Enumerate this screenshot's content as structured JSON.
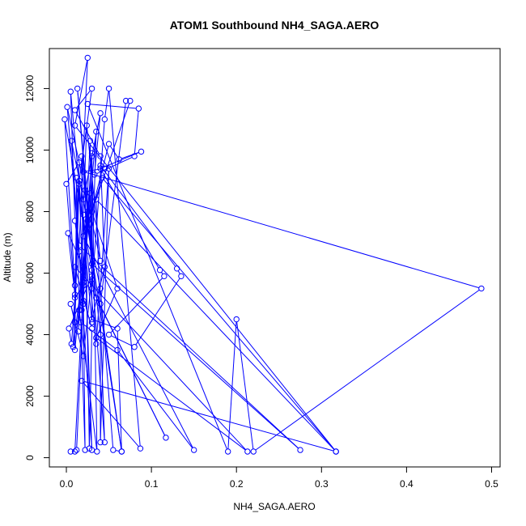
{
  "chart_data": {
    "type": "line",
    "title": "ATOM1 Southbound NH4_SAGA.AERO",
    "xlabel": "NH4_SAGA.AERO",
    "ylabel": "Altitude (m)",
    "xlim": [
      -0.02,
      0.51
    ],
    "ylim": [
      -300,
      13300
    ],
    "x_ticks": [
      0.0,
      0.1,
      0.2,
      0.3,
      0.4,
      0.5
    ],
    "x_tick_labels": [
      "0.0",
      "0.1",
      "0.2",
      "0.3",
      "0.4",
      "0.5"
    ],
    "y_ticks": [
      0,
      2000,
      4000,
      6000,
      8000,
      10000,
      12000
    ],
    "y_tick_labels": [
      "0",
      "2000",
      "4000",
      "6000",
      "8000",
      "10000",
      "12000"
    ],
    "grid": false,
    "series": [
      {
        "color": "#0000ff",
        "marker": "open-circle",
        "points": [
          [
            0.005,
            200
          ],
          [
            0.012,
            250
          ],
          [
            0.02,
            5000
          ],
          [
            0.015,
            9000
          ],
          [
            0.03,
            12000
          ],
          [
            0.01,
            11300
          ],
          [
            0.04,
            9800
          ],
          [
            0.045,
            6200
          ],
          [
            0.03,
            4500
          ],
          [
            0.06,
            4200
          ],
          [
            0.065,
            200
          ],
          [
            0.055,
            250
          ],
          [
            0.04,
            5500
          ],
          [
            0.025,
            7500
          ],
          [
            0.05,
            10200
          ],
          [
            0.062,
            9700
          ],
          [
            0.088,
            9950
          ],
          [
            0.04,
            9400
          ],
          [
            0.11,
            6100
          ],
          [
            0.115,
            5900
          ],
          [
            0.05,
            4000
          ],
          [
            0.08,
            3600
          ],
          [
            0.135,
            5900
          ],
          [
            0.13,
            6150
          ],
          [
            0.04,
            9500
          ],
          [
            0.045,
            9400
          ],
          [
            0.02,
            9300
          ],
          [
            0.488,
            5500
          ],
          [
            0.22,
            200
          ],
          [
            0.2,
            4500
          ],
          [
            0.19,
            200
          ],
          [
            0.025,
            11500
          ],
          [
            0.085,
            11350
          ],
          [
            0.08,
            9800
          ],
          [
            0.033,
            9200
          ],
          [
            0.04,
            11200
          ],
          [
            0.02,
            8400
          ],
          [
            0.065,
            200
          ],
          [
            0.04,
            5000
          ],
          [
            0.07,
            11600
          ],
          [
            0.075,
            11600
          ],
          [
            0.02,
            7200
          ],
          [
            0.15,
            250
          ],
          [
            0.06,
            3500
          ],
          [
            0.017,
            4400
          ],
          [
            0.022,
            250
          ],
          [
            0.018,
            9800
          ],
          [
            0.025,
            8000
          ],
          [
            0.045,
            500
          ],
          [
            0.035,
            8400
          ],
          [
            0.317,
            200
          ],
          [
            0.018,
            2500
          ],
          [
            0.087,
            300
          ],
          [
            0.05,
            12000
          ],
          [
            0.045,
            11000
          ],
          [
            0.03,
            5500
          ],
          [
            0.117,
            650
          ],
          [
            0.035,
            5200
          ],
          [
            0.013,
            12000
          ],
          [
            0.03,
            6300
          ],
          [
            0.275,
            250
          ],
          [
            0.015,
            6900
          ],
          [
            0.025,
            13000
          ],
          [
            0.01,
            10800
          ],
          [
            0.317,
            200
          ],
          [
            0.042,
            9100
          ],
          [
            0.03,
            8000
          ],
          [
            0.06,
            5500
          ],
          [
            0.035,
            3900
          ],
          [
            0.213,
            200
          ],
          [
            0.01,
            6200
          ],
          [
            0.03,
            4200
          ],
          [
            0.027,
            300
          ],
          [
            0.022,
            8700
          ],
          [
            0.04,
            4000
          ],
          [
            0.04,
            500
          ],
          [
            0.05,
            9400
          ],
          [
            0.035,
            3700
          ],
          [
            0.02,
            7900
          ],
          [
            0.03,
            250
          ],
          [
            0.015,
            6700
          ],
          [
            0.006,
            10300
          ],
          [
            0.025,
            7700
          ],
          [
            0.018,
            4800
          ],
          [
            0.028,
            10300
          ],
          [
            0.03,
            5800
          ],
          [
            0.035,
            10600
          ],
          [
            0.02,
            5700
          ],
          [
            0.01,
            7700
          ],
          [
            0.005,
            11900
          ],
          [
            0.03,
            4400
          ],
          [
            0.03,
            9900
          ],
          [
            0.02,
            5100
          ],
          [
            0.001,
            11400
          ],
          [
            0.04,
            6400
          ],
          [
            0.024,
            10800
          ],
          [
            0.014,
            4100
          ],
          [
            0.03,
            9800
          ],
          [
            0.036,
            200
          ],
          [
            0.015,
            4800
          ],
          [
            0.012,
            9100
          ],
          [
            0.01,
            3500
          ],
          [
            0.028,
            8600
          ],
          [
            0.03,
            6100
          ],
          [
            -0.002,
            11000
          ],
          [
            0.01,
            5600
          ],
          [
            0.015,
            9600
          ],
          [
            0.0,
            8900
          ],
          [
            0.01,
            5300
          ],
          [
            0.002,
            7300
          ],
          [
            0.02,
            6200
          ],
          [
            0.008,
            3600
          ],
          [
            0.015,
            8900
          ],
          [
            0.01,
            4400
          ],
          [
            0.005,
            5000
          ],
          [
            0.02,
            3300
          ],
          [
            0.03,
            5900
          ],
          [
            0.003,
            4200
          ],
          [
            0.006,
            3700
          ],
          [
            0.01,
            5200
          ],
          [
            0.02,
            5600
          ],
          [
            0.01,
            200
          ]
        ]
      }
    ]
  }
}
